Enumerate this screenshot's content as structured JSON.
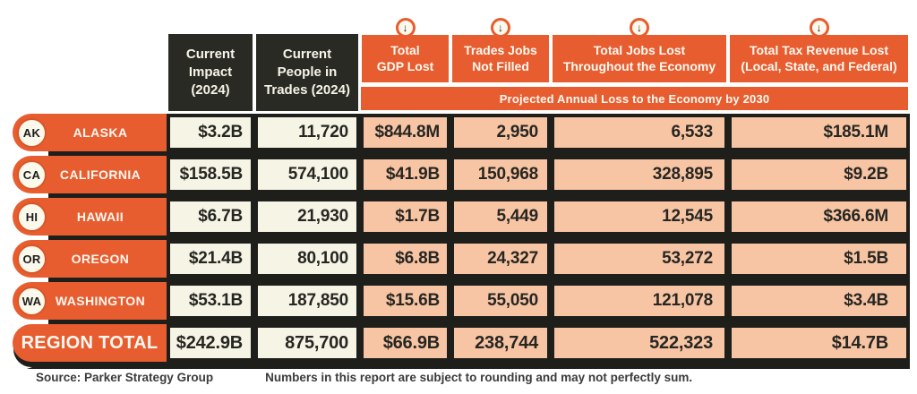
{
  "colors": {
    "orange": "#E85D2F",
    "dark_header": "#2A2A25",
    "cream_cell": "#F6F4E5",
    "peach_cell": "#F8C5A4",
    "border_black": "#1E1E1B"
  },
  "icons": {
    "down_arrow": "↓"
  },
  "header": {
    "impact_label": "Current\nImpact\n(2024)",
    "people_label": "Current\nPeople in\nTrades (2024)",
    "gdp_label": "Total\nGDP Lost",
    "not_filled_label": "Trades Jobs\nNot Filled",
    "jobs_label": "Total Jobs Lost\nThroughout the Economy",
    "tax_label": "Total Tax Revenue Lost\n(Local, State, and Federal)",
    "banner": "Projected Annual Loss to the Economy by 2030"
  },
  "table": {
    "rows": [
      {
        "code": "AK",
        "name": "ALASKA",
        "impact": "$3.2B",
        "people": "11,720",
        "gdp": "$844.8M",
        "not_filled": "2,950",
        "jobs": "6,533",
        "tax": "$185.1M",
        "is_total": false
      },
      {
        "code": "CA",
        "name": "CALIFORNIA",
        "impact": "$158.5B",
        "people": "574,100",
        "gdp": "$41.9B",
        "not_filled": "150,968",
        "jobs": "328,895",
        "tax": "$9.2B",
        "is_total": false
      },
      {
        "code": "HI",
        "name": "HAWAII",
        "impact": "$6.7B",
        "people": "21,930",
        "gdp": "$1.7B",
        "not_filled": "5,449",
        "jobs": "12,545",
        "tax": "$366.6M",
        "is_total": false
      },
      {
        "code": "OR",
        "name": "OREGON",
        "impact": "$21.4B",
        "people": "80,100",
        "gdp": "$6.8B",
        "not_filled": "24,327",
        "jobs": "53,272",
        "tax": "$1.5B",
        "is_total": false
      },
      {
        "code": "WA",
        "name": "WASHINGTON",
        "impact": "$53.1B",
        "people": "187,850",
        "gdp": "$15.6B",
        "not_filled": "55,050",
        "jobs": "121,078",
        "tax": "$3.4B",
        "is_total": false
      },
      {
        "code": "",
        "name": "REGION TOTAL",
        "impact": "$242.9B",
        "people": "875,700",
        "gdp": "$66.9B",
        "not_filled": "238,744",
        "jobs": "522,323",
        "tax": "$14.7B",
        "is_total": true
      }
    ]
  },
  "footer": {
    "source": "Source: Parker Strategy Group",
    "note": "Numbers in this report are subject to rounding and may not perfectly sum."
  },
  "chart_data": {
    "type": "table",
    "group_header": "Projected Annual Loss to the Economy by 2030 (last four columns)",
    "columns": [
      "State",
      "Current Impact (2024)",
      "Current People in Trades (2024)",
      "Total GDP Lost",
      "Trades Jobs Not Filled",
      "Total Jobs Lost Throughout the Economy",
      "Total Tax Revenue Lost (Local, State, and Federal)"
    ],
    "rows": [
      [
        "Alaska (AK)",
        "$3.2B",
        "11,720",
        "$844.8M",
        "2,950",
        "6,533",
        "$185.1M"
      ],
      [
        "California (CA)",
        "$158.5B",
        "574,100",
        "$41.9B",
        "150,968",
        "328,895",
        "$9.2B"
      ],
      [
        "Hawaii (HI)",
        "$6.7B",
        "21,930",
        "$1.7B",
        "5,449",
        "12,545",
        "$366.6M"
      ],
      [
        "Oregon (OR)",
        "$21.4B",
        "80,100",
        "$6.8B",
        "24,327",
        "53,272",
        "$1.5B"
      ],
      [
        "Washington (WA)",
        "$53.1B",
        "187,850",
        "$15.6B",
        "55,050",
        "121,078",
        "$3.4B"
      ],
      [
        "Region Total",
        "$242.9B",
        "875,700",
        "$66.9B",
        "238,744",
        "522,323",
        "$14.7B"
      ]
    ]
  }
}
